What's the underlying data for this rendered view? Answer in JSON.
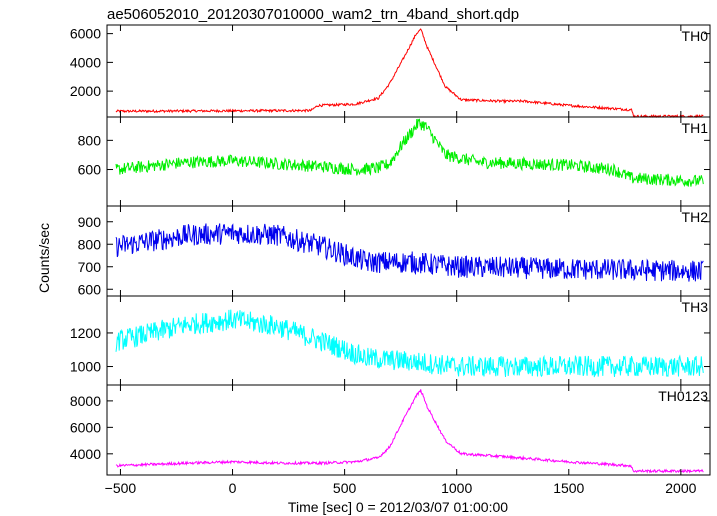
{
  "chart_data": {
    "type": "line",
    "title": "ae506052010_20120307010000_wam2_trn_4band_short.qdp",
    "xlabel": "Time [sec] 0 = 2012/03/07 01:00:00",
    "ylabel": "Counts/sec",
    "xlim": [
      -560,
      2130
    ],
    "x_ticks": [
      -500,
      0,
      500,
      1000,
      1500,
      2000
    ],
    "x_tick_labels": [
      "−500",
      "0",
      "500",
      "1000",
      "1500",
      "2000"
    ],
    "panels": [
      {
        "name": "TH0",
        "color": "#ff0000",
        "ylim": [
          200,
          6600
        ],
        "y_ticks": [
          2000,
          4000,
          6000
        ],
        "y_tick_labels": [
          "2000",
          "4000",
          "6000"
        ],
        "noise": 60,
        "x": [
          -520,
          350,
          380,
          550,
          620,
          650,
          700,
          760,
          820,
          840,
          870,
          950,
          1020,
          1200,
          1300,
          1500,
          1780,
          1790,
          2100
        ],
        "y": [
          600,
          650,
          1000,
          1100,
          1400,
          1500,
          2500,
          4200,
          6000,
          6300,
          5000,
          2300,
          1400,
          1300,
          1300,
          1000,
          700,
          250,
          250
        ]
      },
      {
        "name": "TH1",
        "color": "#00ee00",
        "ylim": [
          350,
          960
        ],
        "y_ticks": [
          600,
          800
        ],
        "y_tick_labels": [
          "600",
          "800"
        ],
        "noise": 30,
        "x": [
          -520,
          -200,
          0,
          200,
          400,
          550,
          650,
          700,
          760,
          830,
          860,
          950,
          1100,
          1500,
          1700,
          1780,
          2100
        ],
        "y": [
          600,
          650,
          660,
          640,
          620,
          600,
          610,
          640,
          780,
          920,
          900,
          700,
          650,
          630,
          600,
          540,
          520
        ]
      },
      {
        "name": "TH2",
        "color": "#0000ee",
        "ylim": [
          570,
          970
        ],
        "y_ticks": [
          600,
          700,
          800,
          900
        ],
        "y_tick_labels": [
          "600",
          "700",
          "800",
          "900"
        ],
        "noise": 35,
        "x": [
          -520,
          -200,
          0,
          200,
          400,
          600,
          800,
          1000,
          1500,
          2100
        ],
        "y": [
          790,
          840,
          850,
          840,
          790,
          720,
          720,
          700,
          690,
          680
        ]
      },
      {
        "name": "TH3",
        "color": "#00ffff",
        "ylim": [
          890,
          1420
        ],
        "y_ticks": [
          1000,
          1200
        ],
        "y_tick_labels": [
          "1000",
          "1200"
        ],
        "noise": 45,
        "x": [
          -520,
          -200,
          0,
          200,
          400,
          600,
          800,
          1000,
          1500,
          2100
        ],
        "y": [
          1150,
          1250,
          1280,
          1240,
          1150,
          1050,
          1030,
          1000,
          1000,
          1000
        ]
      },
      {
        "name": "TH0123",
        "color": "#ff00ff",
        "ylim": [
          2400,
          9200
        ],
        "y_ticks": [
          4000,
          6000,
          8000
        ],
        "y_tick_labels": [
          "4000",
          "6000",
          "8000"
        ],
        "noise": 70,
        "x": [
          -520,
          -200,
          0,
          200,
          400,
          550,
          650,
          700,
          760,
          820,
          840,
          870,
          950,
          1020,
          1200,
          1500,
          1775,
          1790,
          2100
        ],
        "y": [
          3100,
          3300,
          3400,
          3300,
          3300,
          3400,
          3700,
          4500,
          6500,
          8400,
          8800,
          7500,
          5000,
          4000,
          3800,
          3400,
          3100,
          2700,
          2700
        ]
      }
    ]
  }
}
